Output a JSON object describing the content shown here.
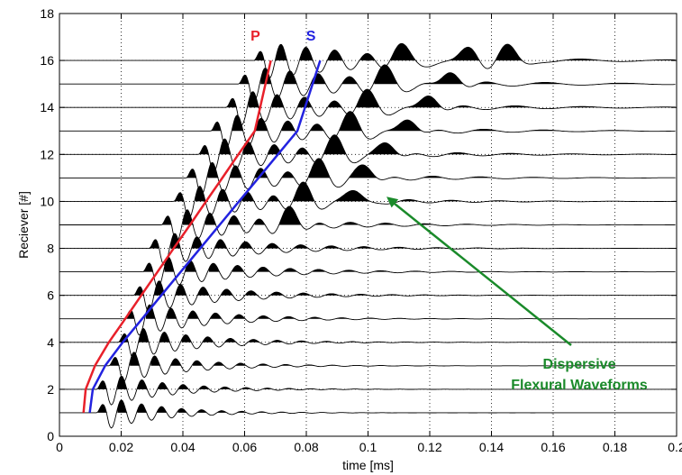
{
  "chart_data": {
    "type": "line",
    "xlabel": "time [ms]",
    "ylabel": "Reciever [#]",
    "xlim": [
      0,
      0.2
    ],
    "ylim": [
      0,
      18
    ],
    "grid": true,
    "x_ticks": [
      "0",
      "0.02",
      "0.04",
      "0.06",
      "0.08",
      "0.1",
      "0.12",
      "0.14",
      "0.16",
      "0.18",
      "0.2"
    ],
    "y_ticks": [
      "0",
      "2",
      "4",
      "6",
      "8",
      "10",
      "12",
      "14",
      "16",
      "18"
    ],
    "receivers": [
      1,
      2,
      3,
      4,
      5,
      6,
      7,
      8,
      9,
      10,
      11,
      12,
      13,
      14,
      15,
      16
    ],
    "series": [
      {
        "name": "P",
        "color": "#e8202a",
        "x": [
          0.0078,
          0.0085,
          0.0115,
          0.016,
          0.0213,
          0.0265,
          0.0318,
          0.037,
          0.0423,
          0.0475,
          0.0528,
          0.058,
          0.0633,
          0.0685
        ],
        "y": [
          1,
          2,
          3,
          4,
          5,
          6,
          7,
          8,
          9,
          10,
          11,
          12,
          13,
          16
        ]
      },
      {
        "name": "S",
        "color": "#2222e0",
        "x": [
          0.0098,
          0.0108,
          0.0148,
          0.0205,
          0.0268,
          0.033,
          0.0393,
          0.0456,
          0.0519,
          0.0582,
          0.0645,
          0.0708,
          0.0771,
          0.0845
        ],
        "y": [
          1,
          2,
          3,
          4,
          5,
          6,
          7,
          8,
          9,
          10,
          11,
          12,
          13,
          16
        ]
      }
    ],
    "waveform_peaks_approx": [
      {
        "receiver": 1,
        "peaks_ms": [
          0.024,
          0.033,
          0.039
        ]
      },
      {
        "receiver": 2,
        "peaks_ms": [
          0.024,
          0.03,
          0.036,
          0.042
        ]
      },
      {
        "receiver": 3,
        "peaks_ms": [
          0.028,
          0.034,
          0.04,
          0.046
        ]
      },
      {
        "receiver": 4,
        "peaks_ms": [
          0.031,
          0.037,
          0.043,
          0.049
        ]
      },
      {
        "receiver": 5,
        "peaks_ms": [
          0.033,
          0.04,
          0.046,
          0.052
        ]
      },
      {
        "receiver": 6,
        "peaks_ms": [
          0.036,
          0.042,
          0.049,
          0.055
        ]
      },
      {
        "receiver": 7,
        "peaks_ms": [
          0.039,
          0.045,
          0.052,
          0.058
        ]
      },
      {
        "receiver": 8,
        "peaks_ms": [
          0.041,
          0.048,
          0.055,
          0.061
        ]
      },
      {
        "receiver": 9,
        "peaks_ms": [
          0.045,
          0.052,
          0.059,
          0.066,
          0.075
        ]
      },
      {
        "receiver": 10,
        "peaks_ms": [
          0.049,
          0.056,
          0.063,
          0.071,
          0.079,
          0.095
        ]
      },
      {
        "receiver": 11,
        "peaks_ms": [
          0.053,
          0.06,
          0.067,
          0.075,
          0.084,
          0.099
        ]
      },
      {
        "receiver": 12,
        "peaks_ms": [
          0.057,
          0.064,
          0.071,
          0.079,
          0.089,
          0.106
        ]
      },
      {
        "receiver": 13,
        "peaks_ms": [
          0.061,
          0.068,
          0.075,
          0.083,
          0.094,
          0.113
        ]
      },
      {
        "receiver": 14,
        "peaks_ms": [
          0.066,
          0.073,
          0.08,
          0.088,
          0.099,
          0.12
        ]
      },
      {
        "receiver": 15,
        "peaks_ms": [
          0.07,
          0.077,
          0.084,
          0.092,
          0.105,
          0.127
        ]
      },
      {
        "receiver": 16,
        "peaks_ms": [
          0.075,
          0.082,
          0.089,
          0.097,
          0.11,
          0.133,
          0.145
        ]
      }
    ],
    "annotations": [
      {
        "text_lines": [
          "Dispersive",
          "Flexural Waveforms"
        ],
        "color": "#1a8a2a",
        "points_to": {
          "x": 0.106,
          "y": 10.2
        }
      }
    ]
  },
  "labels": {
    "p": "P",
    "s": "S",
    "annotation_line1": "Dispersive",
    "annotation_line2": "Flexural Waveforms"
  },
  "colors": {
    "p_curve": "#e8202a",
    "s_curve": "#2222e0",
    "annotation": "#1a8a2a",
    "waveform": "#000000"
  }
}
